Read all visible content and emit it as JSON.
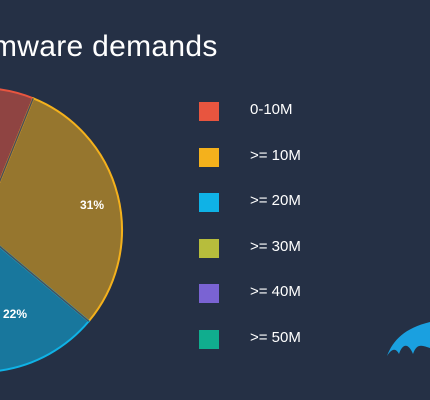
{
  "title": "mware demands",
  "chart_data": {
    "type": "pie",
    "title": "mware demands",
    "slices": [
      {
        "label": "0-10M",
        "value": 10,
        "color": "#e8553f",
        "shown_label": ""
      },
      {
        "label": ">= 10M",
        "value": 31,
        "color": "#f4b11c",
        "shown_label": "31%"
      },
      {
        "label": ">= 20M",
        "value": 22,
        "color": "#0fb2e6",
        "shown_label": "22%"
      },
      {
        "label": ">= 30M",
        "value": 0,
        "color": "#b7bd3c",
        "shown_label": ""
      },
      {
        "label": ">= 40M",
        "value": 0,
        "color": "#7a63d3",
        "shown_label": ""
      },
      {
        "label": ">= 50M",
        "value": 0,
        "color": "#10ad8e",
        "shown_label": ""
      }
    ],
    "legend_position": "right"
  },
  "legend": [
    {
      "label": "0-10M",
      "color": "#e8553f"
    },
    {
      "label": ">= 10M",
      "color": "#f4b11c"
    },
    {
      "label": ">= 20M",
      "color": "#0fb2e6"
    },
    {
      "label": ">= 30M",
      "color": "#b7bd3c"
    },
    {
      "label": ">= 40M",
      "color": "#7a63d3"
    },
    {
      "label": ">= 50M",
      "color": "#10ad8e"
    }
  ],
  "logo_icon": "shark-fin-logo-icon"
}
